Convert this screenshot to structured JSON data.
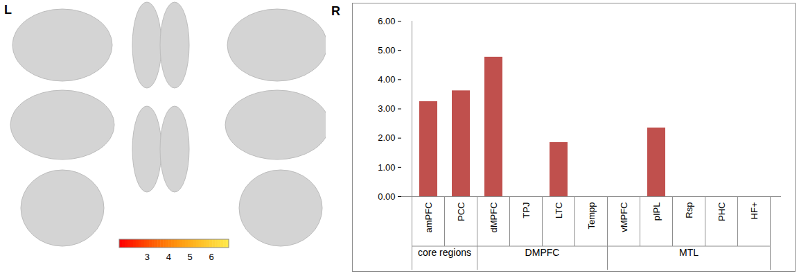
{
  "chart_data": [
    {
      "type": "brain_map",
      "title": "L",
      "colorbar": {
        "range": [
          1.7,
          6.8
        ],
        "ticks": [
          3,
          4,
          5,
          6
        ],
        "colors": [
          "#ff0000",
          "#ff9a00",
          "#ffe84a"
        ]
      }
    },
    {
      "type": "bar",
      "title": "R",
      "categories": [
        "amPFC",
        "PCC",
        "dMPFC",
        "TPJ",
        "LTC",
        "Tempp",
        "vMPFC",
        "pIPL",
        "Rsp",
        "PHC",
        "HF+"
      ],
      "category_groups": [
        "core regions",
        "core regions",
        "DMPFC",
        "DMPFC",
        "DMPFC",
        "DMPFC",
        "MTL",
        "MTL",
        "MTL",
        "MTL",
        "MTL"
      ],
      "values": [
        3.25,
        3.62,
        4.77,
        0,
        1.85,
        0,
        0,
        2.35,
        0,
        0,
        0
      ],
      "color": "#c0504d",
      "ylim": [
        0,
        6
      ],
      "yticks": [
        {
          "value": 0,
          "label": "0.00"
        },
        {
          "value": 1,
          "label": "1.00"
        },
        {
          "value": 2,
          "label": "2.00"
        },
        {
          "value": 3,
          "label": "3.00"
        },
        {
          "value": 4,
          "label": "4.00"
        },
        {
          "value": 5,
          "label": "5.00"
        },
        {
          "value": 6,
          "label": "6.00"
        }
      ],
      "grid": false
    }
  ]
}
